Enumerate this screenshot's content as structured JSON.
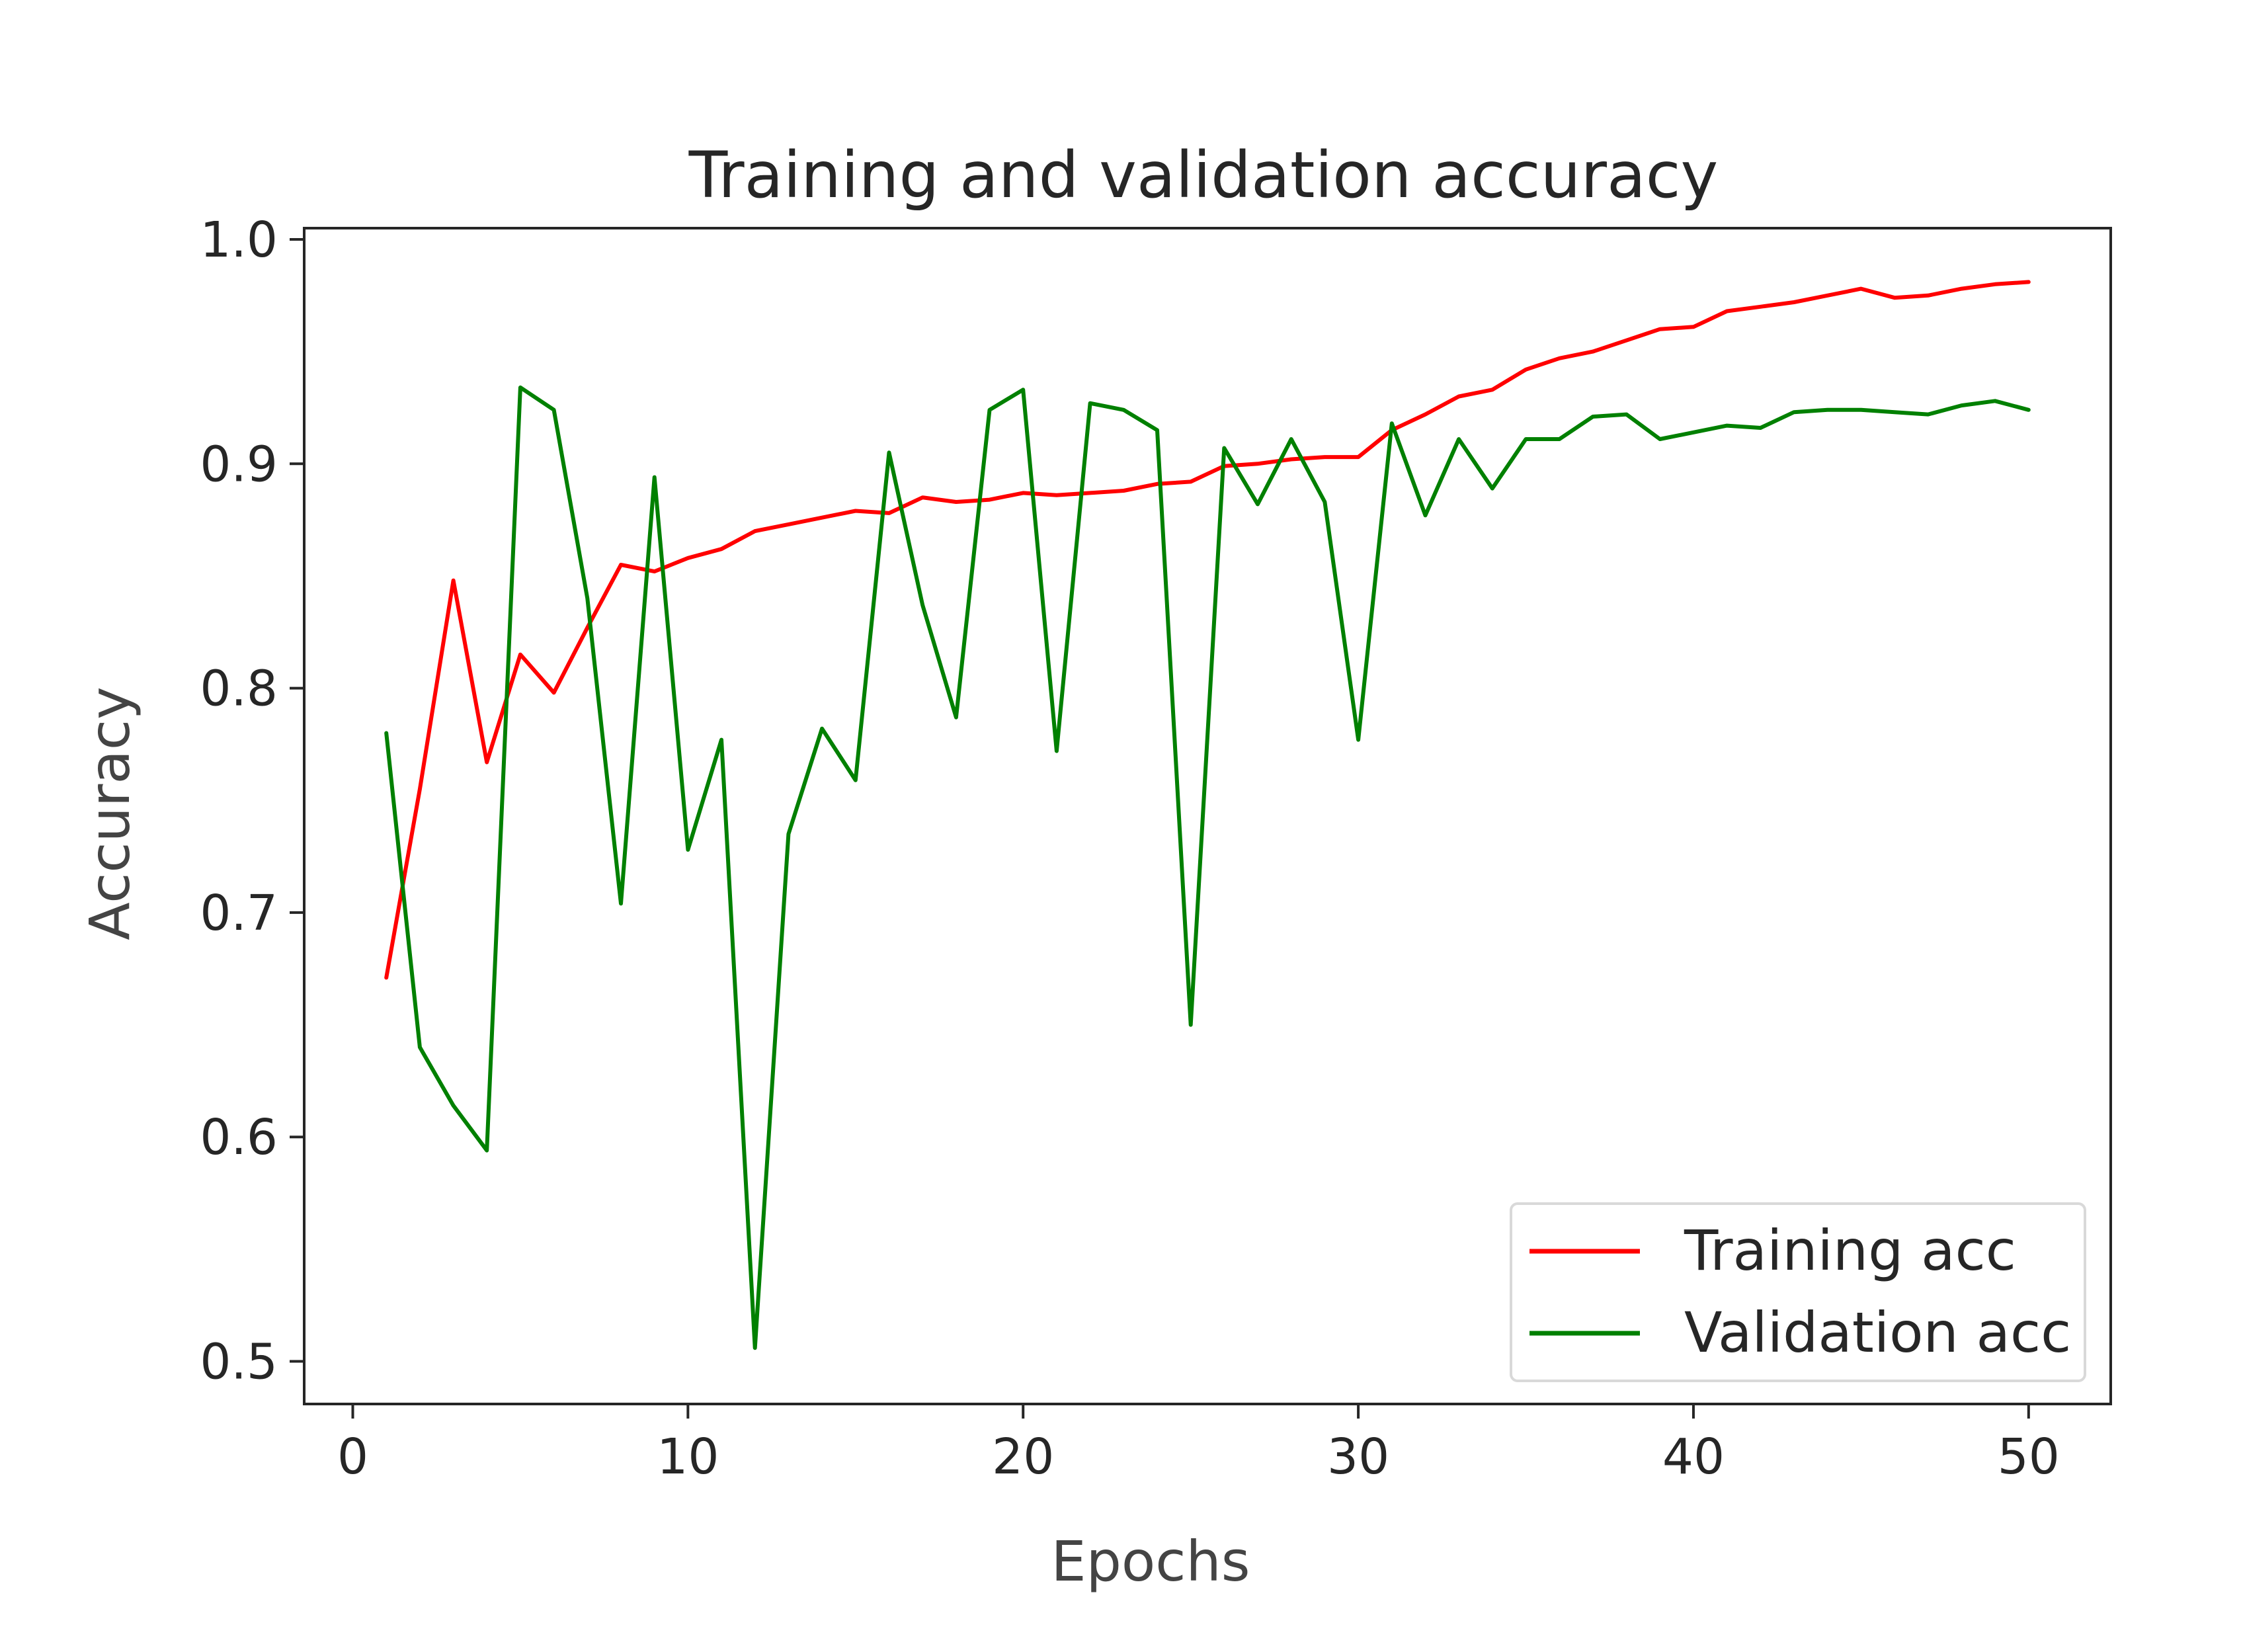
{
  "chart_data": {
    "type": "line",
    "title": "Training and validation accuracy",
    "xlabel": "Epochs",
    "ylabel": "Accuracy",
    "xlim": [
      -1.45,
      52.45
    ],
    "ylim": [
      0.481,
      1.005
    ],
    "x_ticks": [
      0,
      10,
      20,
      30,
      40,
      50
    ],
    "y_ticks": [
      0.5,
      0.6,
      0.7,
      0.8,
      0.9,
      1.0
    ],
    "x_tick_labels": [
      "0",
      "10",
      "20",
      "30",
      "40",
      "50"
    ],
    "y_tick_labels": [
      "0.5",
      "0.6",
      "0.7",
      "0.8",
      "0.9",
      "1.0"
    ],
    "grid": false,
    "legend_position": "lower-right",
    "x": [
      1,
      2,
      3,
      4,
      5,
      6,
      7,
      8,
      9,
      10,
      11,
      12,
      13,
      14,
      15,
      16,
      17,
      18,
      19,
      20,
      21,
      22,
      23,
      24,
      25,
      26,
      27,
      28,
      29,
      30,
      31,
      32,
      33,
      34,
      35,
      36,
      37,
      38,
      39,
      40,
      41,
      42,
      43,
      44,
      45,
      46,
      47,
      48,
      49,
      50
    ],
    "series": [
      {
        "name": "Training acc",
        "color": "#ff0000",
        "values": [
          0.671,
          0.755,
          0.848,
          0.767,
          0.815,
          0.798,
          0.827,
          0.855,
          0.852,
          0.858,
          0.862,
          0.87,
          0.873,
          0.876,
          0.879,
          0.878,
          0.885,
          0.883,
          0.884,
          0.887,
          0.886,
          0.887,
          0.888,
          0.891,
          0.892,
          0.899,
          0.9,
          0.902,
          0.903,
          0.903,
          0.915,
          0.922,
          0.93,
          0.933,
          0.942,
          0.947,
          0.95,
          0.955,
          0.96,
          0.961,
          0.968,
          0.97,
          0.972,
          0.975,
          0.978,
          0.974,
          0.975,
          0.978,
          0.98,
          0.981
        ]
      },
      {
        "name": "Validation acc",
        "color": "#008000",
        "values": [
          0.78,
          0.64,
          0.614,
          0.594,
          0.934,
          0.924,
          0.84,
          0.704,
          0.894,
          0.728,
          0.777,
          0.506,
          0.735,
          0.782,
          0.759,
          0.905,
          0.837,
          0.787,
          0.924,
          0.933,
          0.772,
          0.927,
          0.924,
          0.915,
          0.65,
          0.907,
          0.882,
          0.911,
          0.883,
          0.777,
          0.918,
          0.877,
          0.911,
          0.889,
          0.911,
          0.911,
          0.921,
          0.922,
          0.911,
          0.914,
          0.917,
          0.916,
          0.923,
          0.924,
          0.924,
          0.923,
          0.922,
          0.926,
          0.928,
          0.924
        ]
      }
    ]
  }
}
